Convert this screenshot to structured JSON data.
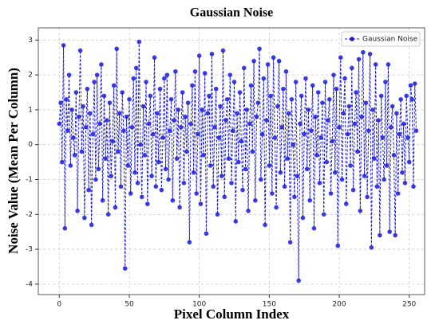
{
  "chart_data": {
    "type": "line",
    "title": "Gaussian Noise",
    "x_label": "Pixel Column Index",
    "y_label": "Noise Value (Mean Per Column)",
    "x": [
      0,
      1,
      2,
      3,
      4,
      5,
      6,
      7,
      8,
      9,
      10,
      11,
      12,
      13,
      14,
      15,
      16,
      17,
      18,
      19,
      20,
      21,
      22,
      23,
      24,
      25,
      26,
      27,
      28,
      29,
      30,
      31,
      32,
      33,
      34,
      35,
      36,
      37,
      38,
      39,
      40,
      41,
      42,
      43,
      44,
      45,
      46,
      47,
      48,
      49,
      50,
      51,
      52,
      53,
      54,
      55,
      56,
      57,
      58,
      59,
      60,
      61,
      62,
      63,
      64,
      65,
      66,
      67,
      68,
      69,
      70,
      71,
      72,
      73,
      74,
      75,
      76,
      77,
      78,
      79,
      80,
      81,
      82,
      83,
      84,
      85,
      86,
      87,
      88,
      89,
      90,
      91,
      92,
      93,
      94,
      95,
      96,
      97,
      98,
      99,
      100,
      101,
      102,
      103,
      104,
      105,
      106,
      107,
      108,
      109,
      110,
      111,
      112,
      113,
      114,
      115,
      116,
      117,
      118,
      119,
      120,
      121,
      122,
      123,
      124,
      125,
      126,
      127,
      128,
      129,
      130,
      131,
      132,
      133,
      134,
      135,
      136,
      137,
      138,
      139,
      140,
      141,
      142,
      143,
      144,
      145,
      146,
      147,
      148,
      149,
      150,
      151,
      152,
      153,
      154,
      155,
      156,
      157,
      158,
      159,
      160,
      161,
      162,
      163,
      164,
      165,
      166,
      167,
      168,
      169,
      170,
      171,
      172,
      173,
      174,
      175,
      176,
      177,
      178,
      179,
      180,
      181,
      182,
      183,
      184,
      185,
      186,
      187,
      188,
      189,
      190,
      191,
      192,
      193,
      194,
      195,
      196,
      197,
      198,
      199,
      200,
      201,
      202,
      203,
      204,
      205,
      206,
      207,
      208,
      209,
      210,
      211,
      212,
      213,
      214,
      215,
      216,
      217,
      218,
      219,
      220,
      221,
      222,
      223,
      224,
      225,
      226,
      227,
      228,
      229,
      230,
      231,
      232,
      233,
      234,
      235,
      236,
      237,
      238,
      239,
      240,
      241,
      242,
      243,
      244,
      245,
      246,
      247,
      248,
      249,
      250,
      251,
      252,
      253,
      254,
      255
    ],
    "series": [
      {
        "name": "Gaussian Noise",
        "color": "#1a1ae0",
        "values": [
          0.6,
          1.2,
          -0.5,
          2.85,
          -2.4,
          1.3,
          0.4,
          2.0,
          -0.6,
          1.0,
          0.2,
          -0.3,
          1.5,
          -1.9,
          0.8,
          2.7,
          -0.2,
          1.1,
          -2.1,
          0.5,
          1.6,
          -1.3,
          0.9,
          -2.3,
          0.3,
          1.8,
          -1.0,
          2.0,
          -0.7,
          0.6,
          2.3,
          -1.6,
          1.4,
          -0.4,
          0.7,
          -2.0,
          1.2,
          -0.9,
          0.1,
          1.7,
          -1.8,
          2.75,
          -0.2,
          0.9,
          -1.2,
          1.5,
          0.4,
          -3.55,
          0.8,
          -0.6,
          1.3,
          -1.4,
          0.5,
          1.9,
          -0.8,
          2.2,
          -1.1,
          2.95,
          0.0,
          -1.5,
          1.1,
          -0.3,
          1.8,
          -1.7,
          0.6,
          1.4,
          -0.9,
          0.3,
          2.5,
          -1.2,
          0.9,
          -0.5,
          1.6,
          -1.3,
          0.2,
          1.9,
          -0.7,
          2.0,
          -1.0,
          0.4,
          1.3,
          -1.6,
          0.7,
          2.1,
          -0.4,
          1.0,
          -1.8,
          0.5,
          1.5,
          -1.1,
          0.8,
          -0.2,
          1.2,
          -2.8,
          0.6,
          1.7,
          -0.8,
          2.1,
          -1.4,
          0.3,
          2.55,
          -1.7,
          1.0,
          -0.3,
          2.05,
          -2.55,
          0.9,
          1.4,
          -0.6,
          2.6,
          -1.2,
          0.5,
          1.6,
          -2.0,
          0.2,
          1.1,
          -0.9,
          2.7,
          -1.5,
          0.7,
          1.3,
          -0.4,
          2.0,
          -1.1,
          0.4,
          1.8,
          -2.2,
          0.9,
          -0.5,
          1.5,
          0.1,
          -1.3,
          2.2,
          -0.7,
          1.0,
          -1.9,
          0.6,
          1.7,
          -0.2,
          2.4,
          -1.6,
          0.8,
          1.2,
          2.75,
          -1.0,
          0.3,
          1.9,
          -2.3,
          0.7,
          2.3,
          -0.6,
          1.4,
          -1.4,
          2.5,
          0.2,
          -1.8,
          1.1,
          2.4,
          -0.8,
          0.5,
          1.6,
          -1.2,
          2.1,
          -0.4,
          0.9,
          -2.8,
          1.3,
          0.0,
          -1.5,
          1.8,
          -0.9,
          -3.9,
          0.6,
          1.4,
          -2.1,
          0.3,
          1.9,
          -0.7,
          1.0,
          -1.6,
          0.4,
          1.7,
          -2.4,
          0.8,
          -0.3,
          1.5,
          -1.1,
          0.2,
          1.2,
          -2.0,
          1.8,
          -0.5,
          0.7,
          1.3,
          -1.4,
          0.1,
          2.0,
          -0.8,
          1.6,
          -2.9,
          0.5,
          2.5,
          -1.0,
          0.9,
          1.9,
          -1.7,
          0.3,
          1.1,
          -0.6,
          2.2,
          -1.3,
          0.6,
          1.5,
          -0.2,
          2.45,
          -1.9,
          0.8,
          2.65,
          -0.9,
          1.2,
          -1.5,
          0.4,
          2.6,
          -2.95,
          1.0,
          -0.4,
          2.3,
          -1.2,
          0.7,
          -2.6,
          1.4,
          0.2,
          -1.0,
          1.8,
          -0.6,
          2.3,
          -2.5,
          0.5,
          1.1,
          -0.3,
          -2.6,
          0.9,
          -1.4,
          0.3,
          1.3,
          -0.8,
          0.6,
          -1.1,
          1.4,
          0.2,
          -0.5,
          1.7,
          1.3,
          -1.2,
          1.75,
          0.4
        ]
      }
    ],
    "xlim": [
      -15,
      261
    ],
    "ylim": [
      -4.3,
      3.35
    ],
    "xticks": [
      0,
      50,
      100,
      150,
      200,
      250
    ],
    "yticks": [
      -4,
      -3,
      -2,
      -1,
      0,
      1,
      2,
      3
    ],
    "grid": true,
    "legend": "upper right"
  }
}
